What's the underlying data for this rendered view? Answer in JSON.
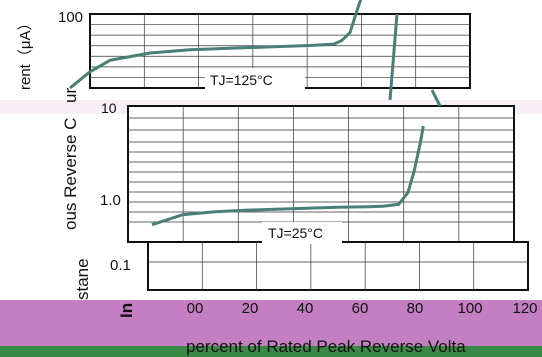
{
  "chart_data": {
    "type": "line",
    "ylabel": "Instantaneous Reverse Current (μA)",
    "xlabel": "percent of Rated Peak Reverse Voltage",
    "x_ticks": [
      "00",
      "20",
      "40",
      "60",
      "80",
      "100",
      "120"
    ],
    "xlim": [
      0,
      120
    ],
    "y_ticks_top": [
      "100",
      "10"
    ],
    "y_ticks_bottom": [
      "1.0",
      "0.1"
    ],
    "y_scale": "log",
    "grid": true,
    "series": [
      {
        "name": "TJ=125°C",
        "x": [
          0,
          5,
          10,
          20,
          30,
          40,
          50,
          60,
          66,
          68,
          70,
          71,
          72,
          73
        ],
        "y": [
          10,
          15,
          20,
          24,
          26,
          27,
          28,
          29,
          30,
          33,
          40,
          55,
          75,
          100
        ]
      },
      {
        "name": "TJ=25°C",
        "x": [
          0,
          5,
          10,
          20,
          30,
          40,
          50,
          60,
          70,
          75,
          80,
          83,
          85,
          87,
          88
        ],
        "y": [
          0.55,
          0.62,
          0.7,
          0.75,
          0.78,
          0.8,
          0.82,
          0.84,
          0.85,
          0.86,
          0.9,
          1.2,
          2.0,
          4.0,
          6.0
        ]
      }
    ]
  },
  "labels": {
    "tj125": "TJ=125°C",
    "tj25": "TJ=25°C",
    "ylabel_top_fragment": "rent（μA）",
    "ylabel_mid_fragment": "ous Reverse C",
    "ylabel_mid_fragment2": "ur",
    "ylabel_low_fragment": "stane",
    "ylabel_lowest_fragment": "In",
    "xlabel_visible": "percent of Rated Peak Reverse Volta"
  },
  "colors": {
    "curve": "#4a7f77",
    "grid": "#333333",
    "frame": "#111111",
    "purple_band": "#c37fc1",
    "green_band": "#3a8a45"
  }
}
